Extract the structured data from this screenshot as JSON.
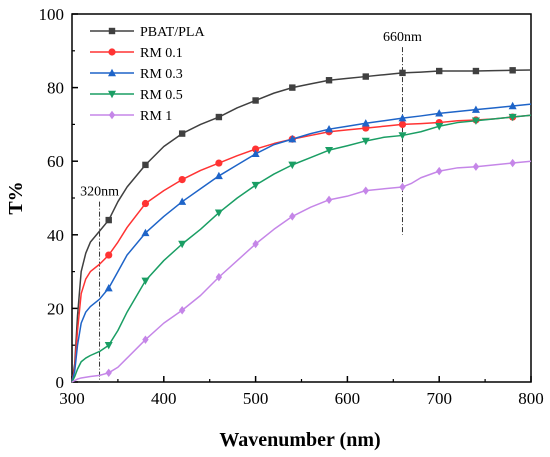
{
  "chart_data": {
    "type": "line",
    "xlabel": "Wavenumber (nm)",
    "ylabel": "T%",
    "xlim": [
      300,
      800
    ],
    "ylim": [
      0,
      100
    ],
    "xticks": [
      300,
      400,
      500,
      600,
      700,
      800
    ],
    "yticks": [
      0,
      20,
      40,
      60,
      80,
      100
    ],
    "grid": false,
    "legend_position": "top-left",
    "series": [
      {
        "name": "PBAT/PLA",
        "color": "#404040",
        "marker": "square",
        "x": [
          300,
          303,
          306,
          310,
          315,
          320,
          330,
          340,
          350,
          360,
          380,
          400,
          420,
          440,
          460,
          480,
          500,
          520,
          540,
          560,
          580,
          600,
          620,
          640,
          660,
          680,
          700,
          720,
          740,
          760,
          780,
          800
        ],
        "y": [
          0,
          5,
          18,
          30,
          35,
          38,
          41,
          44,
          49,
          53,
          59,
          64,
          67.5,
          70,
          72,
          74.5,
          76.5,
          78.5,
          80,
          81,
          82,
          82.5,
          83,
          83.5,
          84,
          84.2,
          84.5,
          84.5,
          84.5,
          84.6,
          84.7,
          84.8
        ],
        "markers_x": [
          340,
          380,
          420,
          460,
          500,
          540,
          580,
          620,
          660,
          700,
          740,
          780
        ]
      },
      {
        "name": "RM 0.1",
        "color": "#ff3333",
        "marker": "circle",
        "x": [
          300,
          303,
          306,
          310,
          315,
          320,
          330,
          340,
          350,
          360,
          380,
          400,
          420,
          440,
          460,
          480,
          500,
          520,
          540,
          560,
          580,
          600,
          620,
          640,
          660,
          680,
          700,
          720,
          740,
          760,
          780,
          800
        ],
        "y": [
          0,
          4,
          14,
          24,
          28,
          30,
          32,
          34.5,
          38,
          42,
          48.5,
          52,
          55,
          57.5,
          59.5,
          61.5,
          63.3,
          64.8,
          66,
          67,
          68,
          68.5,
          69,
          69.5,
          70,
          70.2,
          70.5,
          71,
          71.2,
          71.5,
          72,
          72.5
        ],
        "markers_x": [
          340,
          380,
          420,
          460,
          500,
          540,
          580,
          620,
          660,
          700,
          740,
          780
        ]
      },
      {
        "name": "RM 0.3",
        "color": "#1e64c8",
        "marker": "triangle-up",
        "x": [
          300,
          303,
          306,
          310,
          315,
          320,
          330,
          340,
          350,
          360,
          380,
          400,
          420,
          440,
          460,
          480,
          500,
          520,
          540,
          560,
          580,
          600,
          620,
          640,
          660,
          680,
          700,
          720,
          740,
          760,
          780,
          800
        ],
        "y": [
          0,
          3,
          10,
          16,
          19,
          20.5,
          22.5,
          25.5,
          30,
          34.5,
          40.5,
          45,
          49,
          52.5,
          56,
          59,
          62,
          64.5,
          66,
          67.5,
          68.7,
          69.5,
          70.3,
          71,
          71.7,
          72.3,
          73,
          73.5,
          74,
          74.5,
          75,
          75.5
        ],
        "markers_x": [
          340,
          380,
          420,
          460,
          500,
          540,
          580,
          620,
          660,
          700,
          740,
          780
        ]
      },
      {
        "name": "RM 0.5",
        "color": "#1a9e64",
        "marker": "triangle-down",
        "x": [
          300,
          303,
          306,
          310,
          315,
          320,
          330,
          340,
          350,
          360,
          380,
          400,
          420,
          440,
          460,
          480,
          500,
          520,
          540,
          560,
          580,
          600,
          620,
          640,
          660,
          680,
          700,
          720,
          740,
          760,
          780,
          800
        ],
        "y": [
          0,
          1.5,
          3.5,
          5.5,
          6.5,
          7.2,
          8.3,
          10,
          14,
          19,
          27.5,
          33,
          37.5,
          41.5,
          46,
          50,
          53.5,
          56.5,
          59,
          61,
          63,
          64.2,
          65.5,
          66.5,
          67,
          68,
          69.5,
          70.5,
          71,
          71.5,
          72,
          72.5
        ],
        "markers_x": [
          340,
          380,
          420,
          460,
          500,
          540,
          580,
          620,
          660,
          700,
          740,
          780
        ]
      },
      {
        "name": "RM 1",
        "color": "#c586e8",
        "marker": "diamond",
        "x": [
          300,
          303,
          306,
          310,
          320,
          330,
          340,
          350,
          360,
          380,
          400,
          420,
          440,
          460,
          480,
          500,
          520,
          540,
          560,
          580,
          600,
          620,
          640,
          660,
          670,
          680,
          700,
          720,
          740,
          760,
          780,
          800
        ],
        "y": [
          0,
          0.4,
          0.8,
          1.1,
          1.5,
          1.8,
          2.5,
          4,
          6.5,
          11.5,
          16,
          19.5,
          23.5,
          28.5,
          33,
          37.5,
          41.5,
          45,
          47.5,
          49.5,
          50.5,
          52,
          52.5,
          53,
          54,
          55.5,
          57.3,
          58.2,
          58.5,
          59,
          59.5,
          60
        ],
        "markers_x": [
          340,
          380,
          420,
          460,
          500,
          540,
          580,
          620,
          660,
          700,
          740,
          780
        ]
      }
    ],
    "annotations": [
      {
        "text": "320nm",
        "x": 330,
        "y_from": 0,
        "y_to": 49
      },
      {
        "text": "660nm",
        "x": 660,
        "y_from": 40,
        "y_to": 91
      }
    ]
  }
}
